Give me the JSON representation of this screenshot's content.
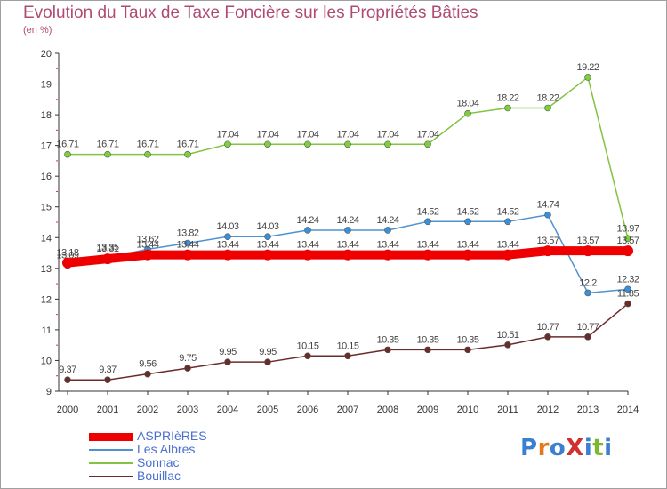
{
  "title": "Evolution du Taux de Taxe Foncière sur les Propriétés Bâties",
  "subtitle": "(en %)",
  "logo": {
    "text": "ProXiti",
    "letter_colors": [
      "#3a7fd0",
      "#e07a1a",
      "#3a7fd0",
      "#d03030",
      "#3a7fd0",
      "#7ab830",
      "#3a7fd0"
    ]
  },
  "chart_data": {
    "type": "line",
    "x": [
      "2000",
      "2001",
      "2002",
      "2003",
      "2004",
      "2005",
      "2006",
      "2007",
      "2008",
      "2009",
      "2010",
      "2011",
      "2012",
      "2013",
      "2014"
    ],
    "ylim": [
      9,
      20
    ],
    "yticks": [
      9,
      10,
      11,
      12,
      13,
      14,
      15,
      16,
      17,
      18,
      19,
      20
    ],
    "grid": false,
    "legend_position": "bottom-left",
    "series": [
      {
        "name": "Sonnac",
        "color": "#82c341",
        "point_color": "#7bd13a",
        "values": [
          16.71,
          16.71,
          16.71,
          16.71,
          17.04,
          17.04,
          17.04,
          17.04,
          17.04,
          17.04,
          18.04,
          18.22,
          18.22,
          19.22,
          13.97
        ],
        "labels": [
          "16.71",
          "16.71",
          "16.71",
          "16.71",
          "17.04",
          "17.04",
          "17.04",
          "17.04",
          "17.04",
          "17.04",
          "18.04",
          "18.22",
          "18.22",
          "19.22",
          "13.97"
        ]
      },
      {
        "name": "Les Albres",
        "color": "#4f92cf",
        "point_color": "#3a8fd9",
        "values": [
          13.09,
          13.35,
          13.62,
          13.82,
          14.03,
          14.03,
          14.24,
          14.24,
          14.24,
          14.52,
          14.52,
          14.52,
          14.74,
          12.2,
          12.32
        ],
        "labels": [
          "13.09",
          "13.35",
          "13.62",
          "13.82",
          "14.03",
          "14.03",
          "14.24",
          "14.24",
          "14.24",
          "14.52",
          "14.52",
          "14.52",
          "14.74",
          "12.2",
          "12.32"
        ]
      },
      {
        "name": "ASPRIèRES",
        "color": "#ee0000",
        "point_color": "#ee0000",
        "values": [
          13.18,
          13.31,
          13.44,
          13.44,
          13.44,
          13.44,
          13.44,
          13.44,
          13.44,
          13.44,
          13.44,
          13.44,
          13.57,
          13.57,
          13.57
        ],
        "labels": [
          "13.18",
          "13.31",
          "13.44",
          "13.44",
          "13.44",
          "13.44",
          "13.44",
          "13.44",
          "13.44",
          "13.44",
          "13.44",
          "13.44",
          "13.57",
          "13.57",
          "13.57"
        ]
      },
      {
        "name": "Bouillac",
        "color": "#6b2b2b",
        "point_color": "#6b2b2b",
        "values": [
          9.37,
          9.37,
          9.56,
          9.75,
          9.95,
          9.95,
          10.15,
          10.15,
          10.35,
          10.35,
          10.35,
          10.51,
          10.77,
          10.77,
          11.85
        ],
        "labels": [
          "9.37",
          "9.37",
          "9.56",
          "9.75",
          "9.95",
          "9.95",
          "10.15",
          "10.15",
          "10.35",
          "10.35",
          "10.35",
          "10.51",
          "10.77",
          "10.77",
          "11.85"
        ]
      }
    ],
    "legend_order": [
      "ASPRIèRES",
      "Les Albres",
      "Sonnac",
      "Bouillac"
    ]
  }
}
